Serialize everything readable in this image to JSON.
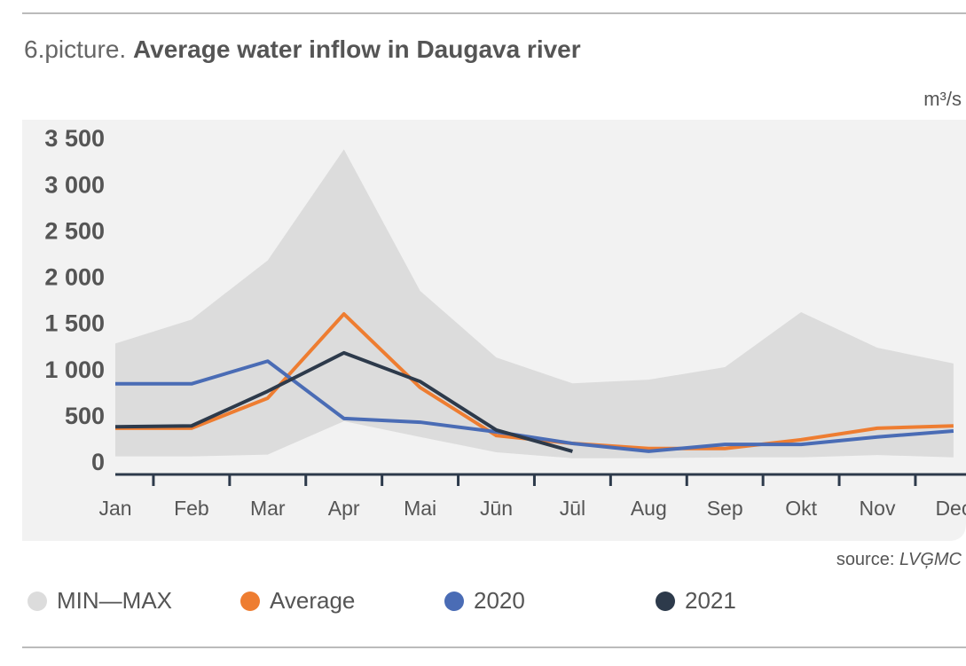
{
  "chart_data": {
    "type": "line",
    "title_prefix": "6.picture.",
    "title": "Average water inflow in Daugava river",
    "unit": "m³/s",
    "source_label": "source:",
    "source": "LVĢMC",
    "categories": [
      "Jan",
      "Feb",
      "Mar",
      "Apr",
      "Mai",
      "Jūn",
      "Jūl",
      "Aug",
      "Sep",
      "Okt",
      "Nov",
      "Dec"
    ],
    "band": {
      "name": "MIN—MAX",
      "color": "#dcdcdc",
      "max": [
        1300,
        1560,
        2200,
        3400,
        1870,
        1150,
        870,
        910,
        1045,
        1640,
        1255,
        1085
      ],
      "min": [
        80,
        80,
        100,
        460,
        290,
        125,
        60,
        60,
        70,
        70,
        95,
        70
      ]
    },
    "series": [
      {
        "name": "Average",
        "color": "#ee7d31",
        "values": [
          385,
          385,
          710,
          1620,
          825,
          305,
          220,
          165,
          165,
          260,
          385,
          410
        ]
      },
      {
        "name": "2020",
        "color": "#4a6cb5",
        "values": [
          865,
          865,
          1110,
          490,
          450,
          345,
          220,
          135,
          210,
          210,
          290,
          355
        ]
      },
      {
        "name": "2021",
        "color": "#2d3a4b",
        "values": [
          400,
          410,
          785,
          1200,
          890,
          365,
          135,
          null,
          null,
          null,
          null,
          null
        ]
      }
    ],
    "ylim": [
      0,
      3500
    ],
    "yticks": [
      0,
      500,
      {
        "value": 1000,
        "label": "1 000"
      },
      {
        "value": 1500,
        "label": "1 500"
      },
      {
        "value": 2000,
        "label": "2 000"
      },
      {
        "value": 2500,
        "label": "2 500"
      },
      {
        "value": 3000,
        "label": "3 000"
      },
      {
        "value": 3500,
        "label": "3 500"
      }
    ]
  }
}
